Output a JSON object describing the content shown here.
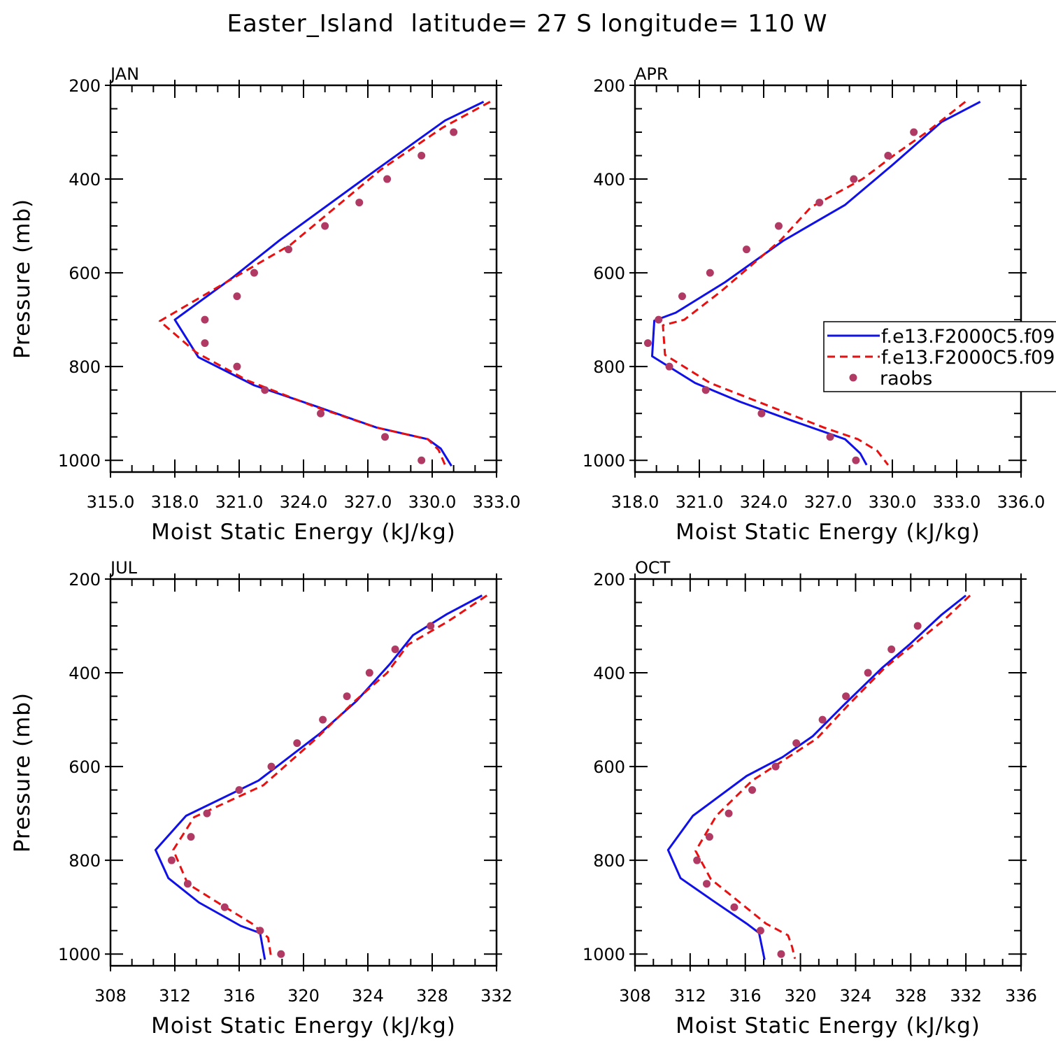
{
  "title": "Easter_Island  latitude= 27 S longitude= 110 W",
  "legend": {
    "entries": [
      "f.e13.F2000C5.f09",
      "f.e13.F2000C5.f09",
      "raobs"
    ]
  },
  "colors": {
    "model1": "#1010e8",
    "model2": "#e81010",
    "obs": "#b03a64"
  },
  "chart_data": [
    {
      "type": "line",
      "label": "JAN",
      "xlabel": "Moist Static Energy (kJ/kg)",
      "ylabel": "Pressure (mb)",
      "xlim": [
        315,
        333
      ],
      "xticks": [
        "315.0",
        "318.0",
        "321.0",
        "324.0",
        "327.0",
        "330.0",
        "333.0"
      ],
      "ylim": [
        1025,
        200
      ],
      "yticks": [
        200,
        400,
        600,
        800,
        1000
      ],
      "series": [
        {
          "name": "f.e13.F2000C5.f09",
          "style": "solid",
          "x": [
            332.4,
            330.6,
            327.4,
            322.9,
            320.7,
            318.0,
            319.1,
            321.7,
            324.6,
            327.4,
            329.8,
            330.4,
            330.9
          ],
          "y": [
            235,
            275,
            380,
            530,
            610,
            700,
            780,
            840,
            885,
            930,
            955,
            975,
            1012
          ]
        },
        {
          "name": "f.e13.F2000C5.f09",
          "style": "dashed",
          "x": [
            332.7,
            330.5,
            327.6,
            323.4,
            320.4,
            317.3,
            319.0,
            321.4,
            324.5,
            327.4,
            329.8,
            330.3,
            330.6
          ],
          "y": [
            235,
            290,
            380,
            540,
            620,
            703,
            770,
            830,
            885,
            930,
            955,
            978,
            1010
          ]
        },
        {
          "name": "raobs",
          "style": "dots",
          "x": [
            331.0,
            329.5,
            327.9,
            326.6,
            325.0,
            323.3,
            321.7,
            320.9,
            319.4,
            319.4,
            320.9,
            322.2,
            324.8,
            327.8,
            329.5
          ],
          "y": [
            300,
            350,
            400,
            450,
            500,
            550,
            600,
            650,
            700,
            750,
            800,
            850,
            900,
            950,
            1000
          ]
        }
      ]
    },
    {
      "type": "line",
      "label": "APR",
      "xlabel": "Moist Static Energy (kJ/kg)",
      "ylabel": "",
      "xlim": [
        318,
        336
      ],
      "xticks": [
        "318.0",
        "321.0",
        "324.0",
        "327.0",
        "330.0",
        "333.0",
        "336.0"
      ],
      "ylim": [
        1025,
        200
      ],
      "yticks": [
        200,
        400,
        600,
        800,
        1000
      ],
      "series": [
        {
          "name": "f.e13.F2000C5.f09",
          "style": "solid",
          "x": [
            334.1,
            332.3,
            330.0,
            327.8,
            324.9,
            322.2,
            319.9,
            318.9,
            318.8,
            320.8,
            322.9,
            325.3,
            327.8,
            328.5,
            328.8
          ],
          "y": [
            235,
            278,
            370,
            455,
            532,
            620,
            685,
            702,
            778,
            835,
            875,
            915,
            955,
            985,
            1010
          ]
        },
        {
          "name": "f.e13.F2000C5.f09",
          "style": "dashed",
          "x": [
            333.4,
            331.6,
            330.2,
            328.6,
            326.2,
            324.8,
            322.0,
            320.3,
            319.3,
            319.4,
            321.5,
            324.3,
            326.8,
            328.4,
            329.3,
            329.8
          ],
          "y": [
            235,
            300,
            345,
            400,
            460,
            530,
            640,
            700,
            712,
            775,
            835,
            885,
            930,
            955,
            980,
            1010
          ]
        },
        {
          "name": "raobs",
          "style": "dots",
          "x": [
            331.0,
            329.8,
            328.2,
            326.6,
            324.7,
            323.2,
            321.5,
            320.2,
            319.1,
            318.6,
            319.6,
            321.3,
            323.9,
            327.1,
            328.3
          ],
          "y": [
            300,
            350,
            400,
            450,
            500,
            550,
            600,
            650,
            700,
            750,
            800,
            850,
            900,
            950,
            1000
          ]
        }
      ]
    },
    {
      "type": "line",
      "label": "JUL",
      "xlabel": "Moist Static Energy (kJ/kg)",
      "ylabel": "Pressure (mb)",
      "xlim": [
        308,
        332
      ],
      "xticks": [
        "308",
        "312",
        "316",
        "320",
        "324",
        "328",
        "332"
      ],
      "ylim": [
        1025,
        200
      ],
      "yticks": [
        200,
        400,
        600,
        800,
        1000
      ],
      "series": [
        {
          "name": "f.e13.F2000C5.f09",
          "style": "solid",
          "x": [
            331.1,
            328.9,
            326.8,
            325.4,
            323.3,
            321.0,
            317.2,
            312.7,
            310.8,
            311.6,
            313.5,
            316.1,
            317.3,
            317.6
          ],
          "y": [
            235,
            275,
            320,
            380,
            460,
            530,
            630,
            705,
            778,
            838,
            890,
            940,
            955,
            1012
          ]
        },
        {
          "name": "f.e13.F2000C5.f09",
          "style": "dashed",
          "x": [
            331.4,
            329.0,
            326.5,
            325.2,
            323.2,
            320.8,
            317.5,
            313.2,
            311.9,
            312.8,
            314.9,
            316.8,
            317.8,
            318.0
          ],
          "y": [
            235,
            290,
            340,
            400,
            460,
            540,
            640,
            708,
            778,
            850,
            895,
            935,
            965,
            1010
          ]
        },
        {
          "name": "raobs",
          "style": "dots",
          "x": [
            327.9,
            325.7,
            324.1,
            322.7,
            321.2,
            319.6,
            318.0,
            316.0,
            314.0,
            313.0,
            311.8,
            312.8,
            315.1,
            317.3,
            318.6
          ],
          "y": [
            300,
            350,
            400,
            450,
            500,
            550,
            600,
            650,
            700,
            750,
            800,
            850,
            900,
            950,
            1000
          ]
        }
      ]
    },
    {
      "type": "line",
      "label": "OCT",
      "xlabel": "Moist Static Energy (kJ/kg)",
      "ylabel": "",
      "xlim": [
        308,
        336
      ],
      "xticks": [
        "308",
        "312",
        "316",
        "320",
        "324",
        "328",
        "332",
        "336"
      ],
      "ylim": [
        1025,
        200
      ],
      "yticks": [
        200,
        400,
        600,
        800,
        1000
      ],
      "series": [
        {
          "name": "f.e13.F2000C5.f09",
          "style": "solid",
          "x": [
            332.0,
            330.2,
            327.9,
            325.9,
            323.1,
            320.9,
            318.7,
            316.1,
            312.2,
            310.4,
            311.3,
            313.6,
            316.1,
            317.0,
            317.4
          ],
          "y": [
            235,
            277,
            340,
            390,
            470,
            535,
            580,
            620,
            705,
            778,
            838,
            885,
            935,
            955,
            1012
          ]
        },
        {
          "name": "f.e13.F2000C5.f09",
          "style": "dashed",
          "x": [
            332.3,
            330.5,
            328.2,
            326.1,
            323.6,
            321.2,
            318.6,
            316.5,
            313.9,
            312.4,
            313.5,
            315.4,
            317.5,
            319.1,
            319.4,
            319.6
          ],
          "y": [
            235,
            285,
            340,
            390,
            465,
            540,
            590,
            630,
            705,
            780,
            840,
            885,
            935,
            960,
            985,
            1010
          ]
        },
        {
          "name": "raobs",
          "style": "dots",
          "x": [
            328.5,
            326.6,
            324.9,
            323.3,
            321.6,
            319.7,
            318.2,
            316.5,
            314.8,
            313.4,
            312.5,
            313.2,
            315.2,
            317.1,
            318.6
          ],
          "y": [
            300,
            350,
            400,
            450,
            500,
            550,
            600,
            650,
            700,
            750,
            800,
            850,
            900,
            950,
            1000
          ]
        }
      ]
    }
  ]
}
